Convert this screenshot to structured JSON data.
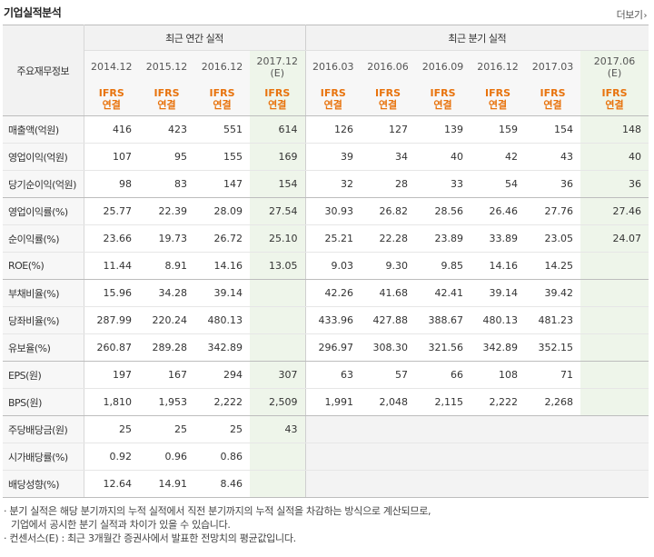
{
  "header": {
    "title": "기업실적분석",
    "more_label": "더보기",
    "more_arrow": "›"
  },
  "table": {
    "label_header": "주요재무정보",
    "annual_group": "최근 연간 실적",
    "quarter_group": "최근 분기 실적",
    "annual_dates": [
      "2014.12",
      "2015.12",
      "2016.12",
      "2017.12"
    ],
    "annual_est_mark": "(E)",
    "quarter_dates": [
      "2016.03",
      "2016.06",
      "2016.09",
      "2016.12",
      "2017.03",
      "2017.06"
    ],
    "quarter_est_mark": "(E)",
    "ifrs_top": "IFRS",
    "ifrs_bottom": "연결",
    "rows": [
      {
        "label": "매출액(억원)",
        "values": [
          "416",
          "423",
          "551",
          "614",
          "126",
          "127",
          "139",
          "159",
          "154",
          "148"
        ]
      },
      {
        "label": "영업이익(억원)",
        "values": [
          "107",
          "95",
          "155",
          "169",
          "39",
          "34",
          "40",
          "42",
          "43",
          "40"
        ]
      },
      {
        "label": "당기순이익(억원)",
        "values": [
          "98",
          "83",
          "147",
          "154",
          "32",
          "28",
          "33",
          "54",
          "36",
          "36"
        ]
      },
      {
        "label": "영업이익률(%)",
        "values": [
          "25.77",
          "22.39",
          "28.09",
          "27.54",
          "30.93",
          "26.82",
          "28.56",
          "26.46",
          "27.76",
          "27.46"
        ]
      },
      {
        "label": "순이익률(%)",
        "values": [
          "23.66",
          "19.73",
          "26.72",
          "25.10",
          "25.21",
          "22.28",
          "23.89",
          "33.89",
          "23.05",
          "24.07"
        ]
      },
      {
        "label": "ROE(%)",
        "values": [
          "11.44",
          "8.91",
          "14.16",
          "13.05",
          "9.03",
          "9.30",
          "9.85",
          "14.16",
          "14.25",
          ""
        ]
      },
      {
        "label": "부채비율(%)",
        "values": [
          "15.96",
          "34.28",
          "39.14",
          "",
          "42.26",
          "41.68",
          "42.41",
          "39.14",
          "39.42",
          ""
        ]
      },
      {
        "label": "당좌비율(%)",
        "values": [
          "287.99",
          "220.24",
          "480.13",
          "",
          "433.96",
          "427.88",
          "388.67",
          "480.13",
          "481.23",
          ""
        ]
      },
      {
        "label": "유보율(%)",
        "values": [
          "260.87",
          "289.28",
          "342.89",
          "",
          "296.97",
          "308.30",
          "321.56",
          "342.89",
          "352.15",
          ""
        ]
      },
      {
        "label": "EPS(원)",
        "values": [
          "197",
          "167",
          "294",
          "307",
          "63",
          "57",
          "66",
          "108",
          "71",
          ""
        ]
      },
      {
        "label": "BPS(원)",
        "values": [
          "1,810",
          "1,953",
          "2,222",
          "2,509",
          "1,991",
          "2,048",
          "2,115",
          "2,222",
          "2,268",
          ""
        ]
      },
      {
        "label": "주당배당금(원)",
        "values": [
          "25",
          "25",
          "25",
          "43",
          "",
          "",
          "",
          "",
          "",
          ""
        ]
      },
      {
        "label": "시가배당률(%)",
        "values": [
          "0.92",
          "0.96",
          "0.86",
          "",
          "",
          "",
          "",
          "",
          "",
          ""
        ]
      },
      {
        "label": "배당성향(%)",
        "values": [
          "12.64",
          "14.91",
          "8.46",
          "",
          "",
          "",
          "",
          "",
          "",
          ""
        ]
      }
    ]
  },
  "notes": {
    "line1": "· 분기 실적은 해당 분기까지의 누적 실적에서 직전 분기까지의 누적 실적을 차감하는 방식으로 계산되므로,",
    "line2": "기업에서 공시한 분기 실적과 차이가 있을 수 있습니다.",
    "line3": "· 컨센서스(E) : 최근 3개월간 증권사에서 발표한 전망치의 평균값입니다."
  },
  "colors": {
    "ifrs_orange": "#e8730d",
    "estimate_green": "#eef5ea",
    "header_gray": "#f2f2f2"
  }
}
